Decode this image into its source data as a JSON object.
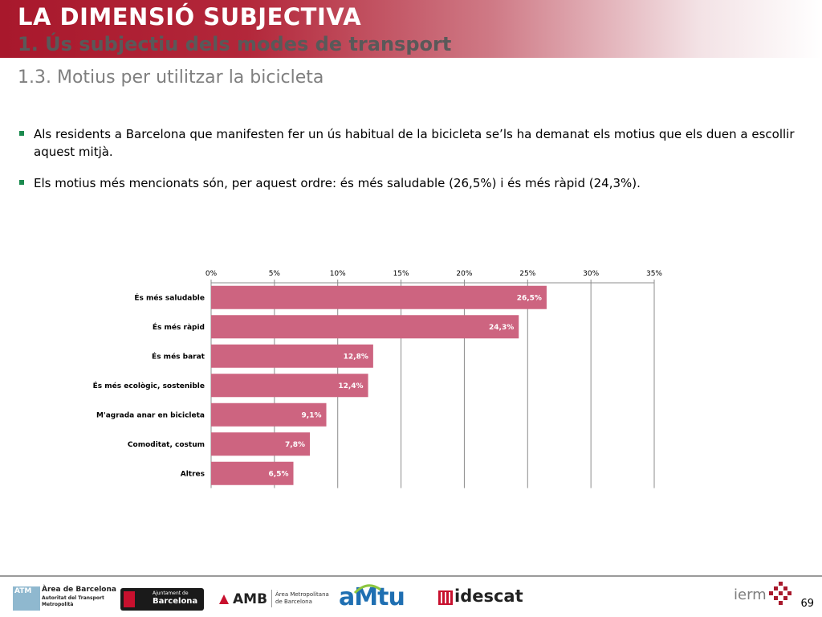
{
  "header": {
    "title": "LA DIMENSIÓ SUBJECTIVA",
    "subtitle": "1. Ús subjectiu dels modes de transport"
  },
  "section": {
    "title": "1.3. Motius per utilitzar la bicicleta"
  },
  "bullets": [
    "Als residents a Barcelona que manifesten fer un ús habitual de la bicicleta se’ls ha demanat els motius que els duen a escollir aquest mitjà.",
    "Els motius més mencionats són, per aquest ordre: és més saludable (26,5%) i és més ràpid (24,3%)."
  ],
  "chart_data": {
    "type": "bar",
    "orientation": "horizontal",
    "categories": [
      "És més saludable",
      "És més ràpid",
      "És més barat",
      "És més ecològic, sostenible",
      "M'agrada anar en bicicleta",
      "Comoditat, costum",
      "Altres"
    ],
    "values": [
      26.5,
      24.3,
      12.8,
      12.4,
      9.1,
      7.8,
      6.5
    ],
    "value_labels": [
      "26,5%",
      "24,3%",
      "12,8%",
      "12,4%",
      "9,1%",
      "7,8%",
      "6,5%"
    ],
    "xlim": [
      0,
      35
    ],
    "ticks": [
      "0%",
      "5%",
      "10%",
      "15%",
      "20%",
      "25%",
      "30%",
      "35%"
    ],
    "axis_position": "top",
    "grid": true,
    "bar_color": "#cd6480"
  },
  "footer": {
    "page_number": "69",
    "logos": {
      "atm": {
        "mark": "ATM",
        "line1": "Àrea de Barcelona",
        "line2": "Autoritat del Transport",
        "line3": "Metropolità"
      },
      "ajuntament": {
        "line1": "Ajuntament de",
        "line2": "Barcelona"
      },
      "amb": {
        "mark": "AMB",
        "line1": "Àrea Metropolitana",
        "line2": "de Barcelona"
      },
      "amtu": {
        "mark": "aMtu"
      },
      "idescat": {
        "mark": "idescat"
      },
      "iermb": {
        "mark": "ierm"
      }
    }
  }
}
